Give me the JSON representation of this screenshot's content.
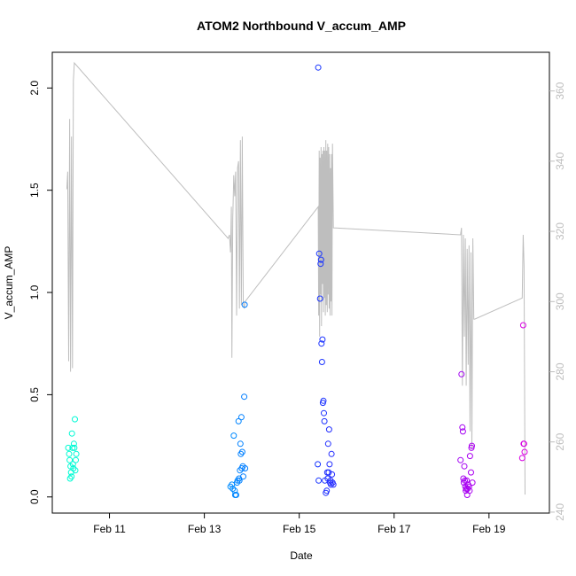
{
  "chart_data": {
    "type": "scatter",
    "title": "ATOM2 Northbound V_accum_AMP",
    "xlabel": "Date",
    "ylabel": "V_accum_AMP",
    "xlim": [
      10.0,
      19.9
    ],
    "ylim": [
      -0.04,
      2.14
    ],
    "y2lim": [
      242,
      369
    ],
    "x_ticks": [
      {
        "value": 11,
        "label": "Feb 11"
      },
      {
        "value": 13,
        "label": "Feb 13"
      },
      {
        "value": 15,
        "label": "Feb 15"
      },
      {
        "value": 17,
        "label": "Feb 17"
      },
      {
        "value": 19,
        "label": "Feb 19"
      }
    ],
    "y_ticks": [
      {
        "value": 0.0,
        "label": "0.0"
      },
      {
        "value": 0.5,
        "label": "0.5"
      },
      {
        "value": 1.0,
        "label": "1.0"
      },
      {
        "value": 1.5,
        "label": "1.5"
      },
      {
        "value": 2.0,
        "label": "2.0"
      }
    ],
    "y2_ticks": [
      {
        "value": 240,
        "label": "240"
      },
      {
        "value": 260,
        "label": "260"
      },
      {
        "value": 280,
        "label": "280"
      },
      {
        "value": 300,
        "label": "300"
      },
      {
        "value": 320,
        "label": "320"
      },
      {
        "value": 340,
        "label": "340"
      },
      {
        "value": 360,
        "label": "360"
      }
    ],
    "colors": {
      "line": "#bebebe",
      "gradient": [
        "#00ffd0",
        "#00c8ff",
        "#0040ff",
        "#7a00ff",
        "#e000e0"
      ]
    },
    "series": [
      {
        "name": "V_accum_AMP",
        "type": "scatter",
        "axis": "left",
        "points": [
          [
            10.13,
            0.24
          ],
          [
            10.15,
            0.21
          ],
          [
            10.16,
            0.18
          ],
          [
            10.18,
            0.15
          ],
          [
            10.19,
            0.12
          ],
          [
            10.17,
            0.09
          ],
          [
            10.2,
            0.1
          ],
          [
            10.21,
            0.31
          ],
          [
            10.22,
            0.24
          ],
          [
            10.23,
            0.16
          ],
          [
            10.24,
            0.14
          ],
          [
            10.25,
            0.26
          ],
          [
            10.26,
            0.24
          ],
          [
            10.27,
            0.38
          ],
          [
            10.28,
            0.13
          ],
          [
            10.29,
            0.18
          ],
          [
            10.3,
            0.21
          ],
          [
            13.55,
            0.05
          ],
          [
            13.58,
            0.06
          ],
          [
            13.6,
            0.04
          ],
          [
            13.62,
            0.3
          ],
          [
            13.64,
            0.03
          ],
          [
            13.65,
            0.01
          ],
          [
            13.67,
            0.01
          ],
          [
            13.69,
            0.07
          ],
          [
            13.7,
            0.08
          ],
          [
            13.72,
            0.37
          ],
          [
            13.73,
            0.09
          ],
          [
            13.74,
            0.08
          ],
          [
            13.75,
            0.13
          ],
          [
            13.76,
            0.26
          ],
          [
            13.77,
            0.21
          ],
          [
            13.78,
            0.39
          ],
          [
            13.79,
            0.14
          ],
          [
            13.8,
            0.22
          ],
          [
            13.81,
            0.15
          ],
          [
            13.82,
            0.1
          ],
          [
            13.84,
            0.49
          ],
          [
            13.85,
            0.94
          ],
          [
            13.86,
            0.14
          ],
          [
            15.4,
            2.1
          ],
          [
            15.42,
            1.19
          ],
          [
            15.44,
            0.97
          ],
          [
            15.45,
            1.14
          ],
          [
            15.46,
            1.16
          ],
          [
            15.47,
            0.75
          ],
          [
            15.48,
            0.66
          ],
          [
            15.49,
            0.77
          ],
          [
            15.5,
            0.46
          ],
          [
            15.51,
            0.47
          ],
          [
            15.52,
            0.41
          ],
          [
            15.53,
            0.37
          ],
          [
            15.54,
            0.08
          ],
          [
            15.56,
            0.02
          ],
          [
            15.58,
            0.03
          ],
          [
            15.59,
            0.12
          ],
          [
            15.6,
            0.09
          ],
          [
            15.61,
            0.26
          ],
          [
            15.62,
            0.12
          ],
          [
            15.63,
            0.33
          ],
          [
            15.64,
            0.16
          ],
          [
            15.65,
            0.07
          ],
          [
            15.66,
            0.08
          ],
          [
            15.67,
            0.06
          ],
          [
            15.68,
            0.21
          ],
          [
            15.69,
            0.11
          ],
          [
            15.7,
            0.07
          ],
          [
            15.72,
            0.06
          ],
          [
            15.39,
            0.16
          ],
          [
            15.41,
            0.08
          ],
          [
            18.4,
            0.18
          ],
          [
            18.42,
            0.6
          ],
          [
            18.44,
            0.34
          ],
          [
            18.45,
            0.32
          ],
          [
            18.46,
            0.09
          ],
          [
            18.47,
            0.07
          ],
          [
            18.48,
            0.15
          ],
          [
            18.49,
            0.08
          ],
          [
            18.5,
            0.05
          ],
          [
            18.51,
            0.03
          ],
          [
            18.52,
            0.04
          ],
          [
            18.53,
            0.08
          ],
          [
            18.54,
            0.01
          ],
          [
            18.55,
            0.04
          ],
          [
            18.56,
            0.06
          ],
          [
            18.58,
            0.05
          ],
          [
            18.59,
            0.03
          ],
          [
            18.6,
            0.2
          ],
          [
            18.62,
            0.12
          ],
          [
            18.63,
            0.24
          ],
          [
            18.64,
            0.25
          ],
          [
            18.65,
            0.07
          ],
          [
            19.72,
            0.84
          ],
          [
            19.73,
            0.26
          ],
          [
            19.74,
            0.26
          ],
          [
            19.75,
            0.22
          ],
          [
            19.7,
            0.19
          ]
        ]
      },
      {
        "name": "secondary",
        "type": "line",
        "axis": "right",
        "points": [
          [
            10.1,
            332
          ],
          [
            10.12,
            337
          ],
          [
            10.14,
            283
          ],
          [
            10.16,
            352
          ],
          [
            10.18,
            280
          ],
          [
            10.2,
            347
          ],
          [
            10.22,
            281
          ],
          [
            10.24,
            363
          ],
          [
            10.26,
            368
          ],
          [
            13.5,
            318
          ],
          [
            13.53,
            319
          ],
          [
            13.55,
            314
          ],
          [
            13.57,
            327
          ],
          [
            13.58,
            284
          ],
          [
            13.6,
            324
          ],
          [
            13.62,
            336
          ],
          [
            13.64,
            330
          ],
          [
            13.66,
            337
          ],
          [
            13.68,
            296
          ],
          [
            13.7,
            338
          ],
          [
            13.72,
            340
          ],
          [
            13.74,
            298
          ],
          [
            13.76,
            346
          ],
          [
            13.78,
            299
          ],
          [
            13.8,
            347
          ],
          [
            13.82,
            300
          ],
          [
            13.84,
            298
          ],
          [
            13.86,
            300
          ],
          [
            15.4,
            327
          ],
          [
            15.41,
            296
          ],
          [
            15.42,
            343
          ],
          [
            15.43,
            290
          ],
          [
            15.44,
            341
          ],
          [
            15.45,
            302
          ],
          [
            15.46,
            344
          ],
          [
            15.47,
            293
          ],
          [
            15.48,
            342
          ],
          [
            15.49,
            305
          ],
          [
            15.5,
            343
          ],
          [
            15.51,
            297
          ],
          [
            15.52,
            344
          ],
          [
            15.53,
            301
          ],
          [
            15.54,
            343
          ],
          [
            15.55,
            296
          ],
          [
            15.56,
            346
          ],
          [
            15.57,
            299
          ],
          [
            15.58,
            343
          ],
          [
            15.59,
            297
          ],
          [
            15.6,
            345
          ],
          [
            15.61,
            302
          ],
          [
            15.62,
            344
          ],
          [
            15.63,
            298
          ],
          [
            15.64,
            342
          ],
          [
            15.65,
            296
          ],
          [
            15.66,
            338
          ],
          [
            15.67,
            300
          ],
          [
            15.68,
            342
          ],
          [
            15.69,
            296
          ],
          [
            15.7,
            345
          ],
          [
            15.72,
            321
          ],
          [
            18.4,
            319
          ],
          [
            18.42,
            321
          ],
          [
            18.44,
            276
          ],
          [
            18.46,
            319
          ],
          [
            18.48,
            290
          ],
          [
            18.5,
            318
          ],
          [
            18.52,
            276
          ],
          [
            18.54,
            315
          ],
          [
            18.56,
            282
          ],
          [
            18.58,
            316
          ],
          [
            18.6,
            263
          ],
          [
            18.62,
            314
          ],
          [
            18.64,
            258
          ],
          [
            18.66,
            318
          ],
          [
            18.68,
            295
          ],
          [
            18.7,
            295
          ],
          [
            19.7,
            301
          ],
          [
            19.72,
            319
          ],
          [
            19.74,
            310
          ],
          [
            19.76,
            245
          ]
        ]
      }
    ]
  }
}
